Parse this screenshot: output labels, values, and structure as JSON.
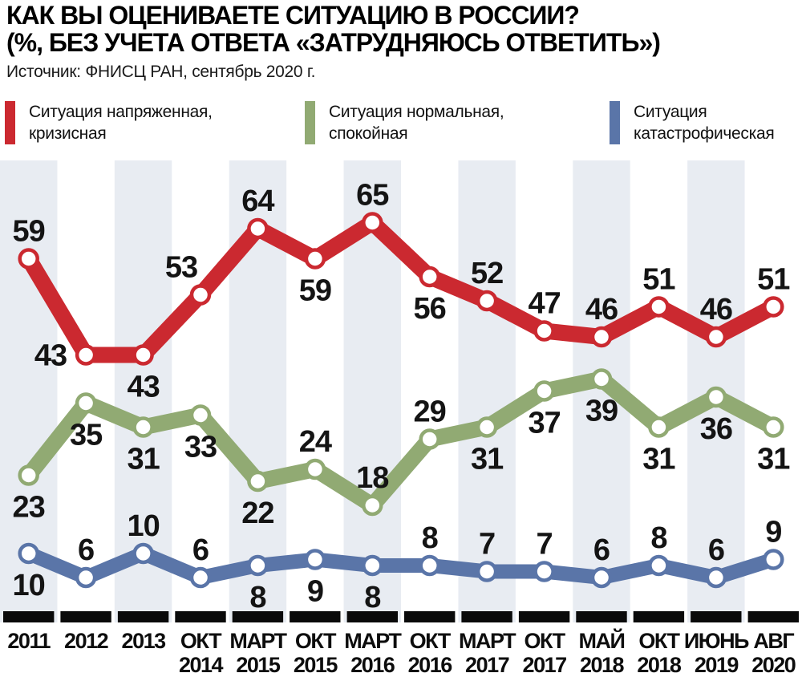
{
  "header": {
    "title_line1": "КАК ВЫ ОЦЕНИВАЕТЕ СИТУАЦИЮ В РОССИИ?",
    "title_line2": "(%, БЕЗ УЧЕТА ОТВЕТА «ЗАТРУДНЯЮСЬ ОТВЕТИТЬ»)",
    "source": "Источник: ФНИСЦ РАН, сентябрь 2020 г."
  },
  "legend": [
    {
      "label_line1": "Ситуация напряженная,",
      "label_line2": "кризисная",
      "color": "#cb2930"
    },
    {
      "label_line1": "Ситуация нормальная,",
      "label_line2": "спокойная",
      "color": "#91aa73"
    },
    {
      "label_line1": "Ситуация",
      "label_line2": "катастрофическая",
      "color": "#5a75a8"
    }
  ],
  "chart_data": {
    "type": "line",
    "title": "КАК ВЫ ОЦЕНИВАЕТЕ СИТУАЦИЮ В РОССИИ? (%, без учета ответа «затрудняюсь ответить»)",
    "source": "ФНИСЦ РАН, сентябрь 2020 г.",
    "categories": [
      [
        "2011",
        ""
      ],
      [
        "2012",
        ""
      ],
      [
        "2013",
        ""
      ],
      [
        "ОКТ",
        "2014"
      ],
      [
        "МАРТ",
        "2015"
      ],
      [
        "ОКТ",
        "2015"
      ],
      [
        "МАРТ",
        "2016"
      ],
      [
        "ОКТ",
        "2016"
      ],
      [
        "МАРТ",
        "2017"
      ],
      [
        "ОКТ",
        "2017"
      ],
      [
        "МАЙ",
        "2018"
      ],
      [
        "ОКТ",
        "2018"
      ],
      [
        "ИЮНЬ",
        "2019"
      ],
      [
        "АВГ",
        "2020"
      ]
    ],
    "series": [
      {
        "name": "Ситуация напряженная, кризисная",
        "color": "#cb2930",
        "values": [
          59,
          43,
          43,
          53,
          64,
          59,
          65,
          56,
          52,
          47,
          46,
          51,
          46,
          51
        ],
        "label_sides": [
          "above",
          "left",
          "below",
          "above-left",
          "above",
          "below",
          "above",
          "below",
          "above",
          "above",
          "above",
          "above",
          "above",
          "above"
        ],
        "stroke_width": 20
      },
      {
        "name": "Ситуация нормальная, спокойная",
        "color": "#91aa73",
        "values": [
          23,
          35,
          31,
          33,
          22,
          24,
          18,
          29,
          31,
          37,
          39,
          31,
          36,
          31
        ],
        "label_sides": [
          "below",
          "below",
          "below",
          "below",
          "below",
          "above",
          "above",
          "above",
          "below",
          "below",
          "below",
          "below",
          "below",
          "below"
        ],
        "stroke_width": 20
      },
      {
        "name": "Ситуация катастрофическая",
        "color": "#5a75a8",
        "values": [
          10,
          6,
          10,
          6,
          8,
          9,
          8,
          8,
          7,
          7,
          6,
          8,
          6,
          9
        ],
        "label_sides": [
          "below",
          "above",
          "above",
          "above",
          "below",
          "below",
          "below",
          "above",
          "above",
          "above",
          "above",
          "above",
          "above",
          "above"
        ],
        "stroke_width": 18
      }
    ],
    "ylim": [
      0,
      75
    ],
    "grid": "alternating-vertical-stripes",
    "stripe_color": "#e8ecf2",
    "axis_bar_color": "#0a0a0a",
    "value_label_color": "#141414",
    "legend_position": "top"
  }
}
